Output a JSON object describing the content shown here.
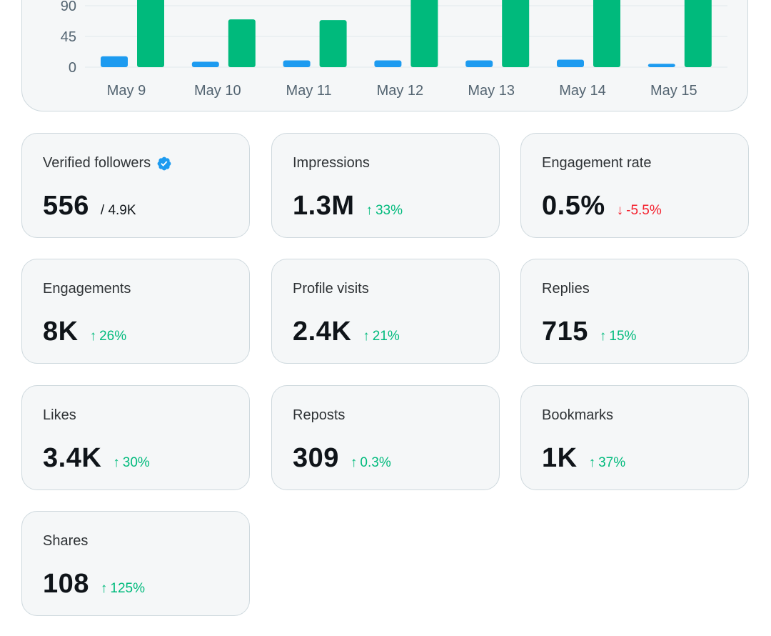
{
  "chart_data": {
    "type": "bar",
    "categories": [
      "May 9",
      "May 10",
      "May 11",
      "May 12",
      "May 13",
      "May 14",
      "May 15"
    ],
    "yticks": [
      "0",
      "45",
      "90"
    ],
    "ylim": [
      0,
      135
    ],
    "series": [
      {
        "values": [
          16,
          8,
          10,
          10,
          10,
          11,
          5
        ],
        "color": "#1d9bf0"
      },
      {
        "values": [
          135,
          70,
          69,
          135,
          135,
          135,
          135
        ],
        "color": "#00ba7c"
      }
    ],
    "grid": true
  },
  "stats": {
    "verified_followers": {
      "label": "Verified followers",
      "value": "556",
      "sub": "/ 4.9K",
      "icon": "verified-badge-icon"
    },
    "impressions": {
      "label": "Impressions",
      "value": "1.3M",
      "change": "33%",
      "direction": "up"
    },
    "engagement_rate": {
      "label": "Engagement rate",
      "value": "0.5%",
      "change": "-5.5%",
      "direction": "down"
    },
    "engagements": {
      "label": "Engagements",
      "value": "8K",
      "change": "26%",
      "direction": "up"
    },
    "profile_visits": {
      "label": "Profile visits",
      "value": "2.4K",
      "change": "21%",
      "direction": "up"
    },
    "replies": {
      "label": "Replies",
      "value": "715",
      "change": "15%",
      "direction": "up"
    },
    "likes": {
      "label": "Likes",
      "value": "3.4K",
      "change": "30%",
      "direction": "up"
    },
    "reposts": {
      "label": "Reposts",
      "value": "309",
      "change": "0.3%",
      "direction": "up"
    },
    "bookmarks": {
      "label": "Bookmarks",
      "value": "1K",
      "change": "37%",
      "direction": "up"
    },
    "shares": {
      "label": "Shares",
      "value": "108",
      "change": "125%",
      "direction": "up"
    }
  },
  "colors": {
    "up": "#00ba7c",
    "down": "#f4212e",
    "accent": "#1d9bf0"
  },
  "icons": {
    "up": "arrow-up-icon",
    "down": "arrow-down-icon"
  }
}
